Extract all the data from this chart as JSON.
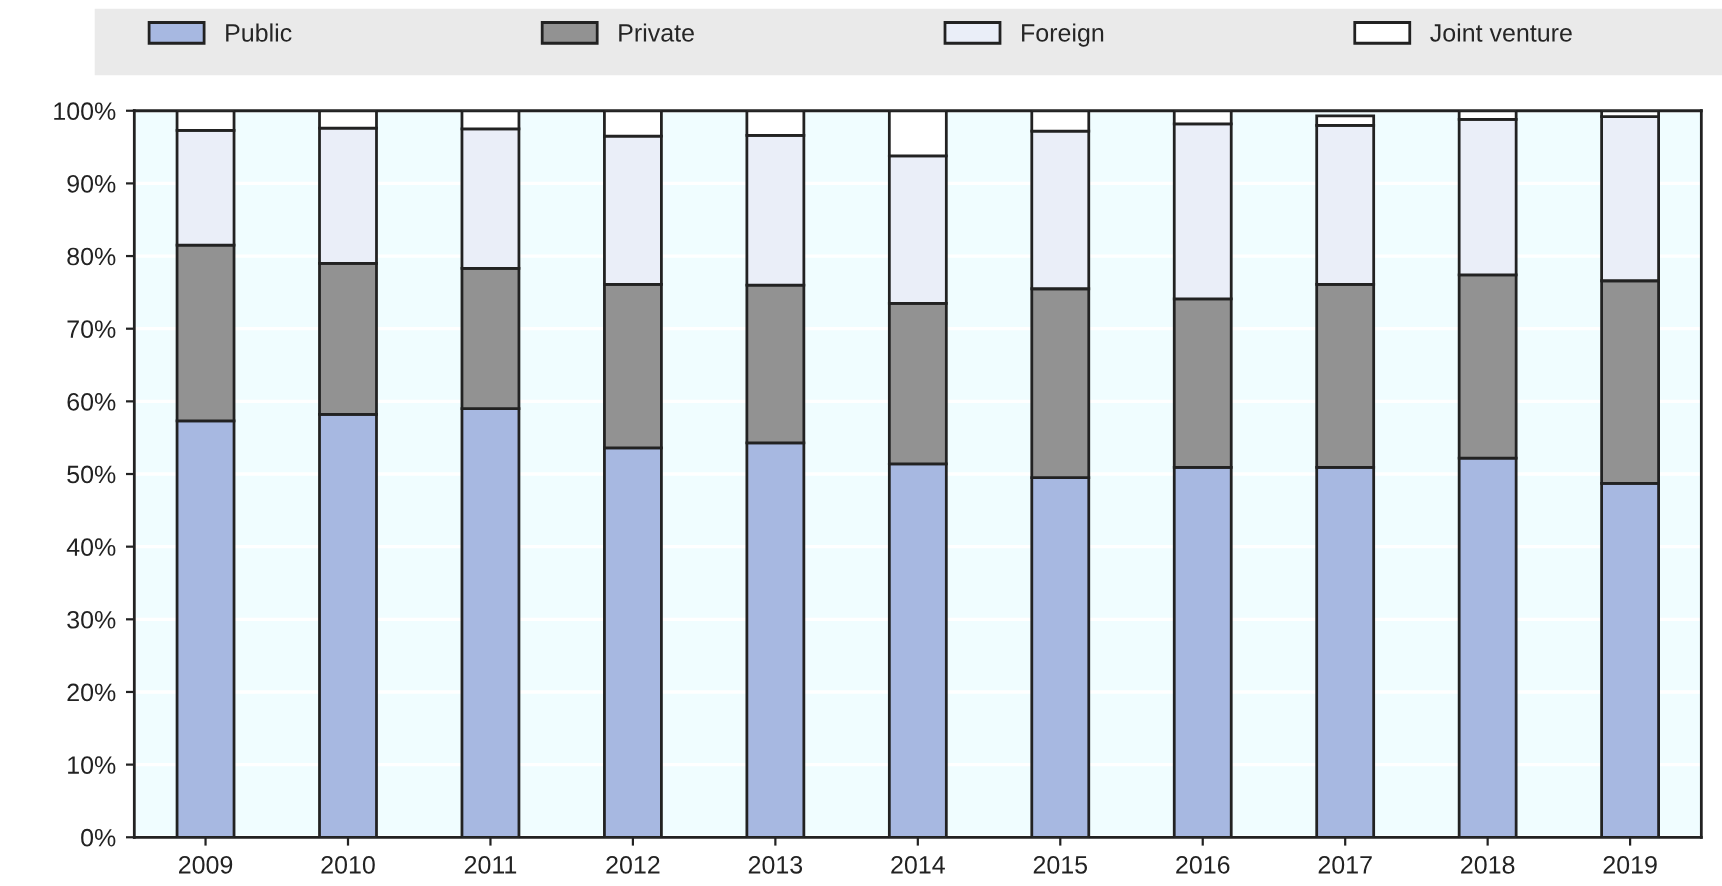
{
  "chart_data": {
    "type": "bar",
    "stacked": true,
    "categories": [
      "2009",
      "2010",
      "2011",
      "2012",
      "2013",
      "2014",
      "2015",
      "2016",
      "2017",
      "2018",
      "2019"
    ],
    "series": [
      {
        "name": "Public",
        "color": "#a7b8e1",
        "values": [
          57.3,
          58.2,
          59.0,
          53.6,
          54.3,
          51.4,
          49.5,
          50.9,
          50.9,
          52.2,
          48.7
        ]
      },
      {
        "name": "Private",
        "color": "#929292",
        "values": [
          24.2,
          20.8,
          19.3,
          22.5,
          21.7,
          22.1,
          26.0,
          23.2,
          25.2,
          25.2,
          27.9
        ]
      },
      {
        "name": "Foreign",
        "color": "#eaeef8",
        "values": [
          15.8,
          18.6,
          19.2,
          20.4,
          20.6,
          20.3,
          21.7,
          24.1,
          21.9,
          21.4,
          22.6
        ]
      },
      {
        "name": "Joint venture",
        "color": "#ffffff",
        "values": [
          2.7,
          2.4,
          2.5,
          3.5,
          3.4,
          6.2,
          2.8,
          1.8,
          1.3,
          1.2,
          0.8
        ]
      }
    ],
    "ylim": [
      0,
      100
    ],
    "yticks": [
      {
        "value": 0,
        "label": "0%"
      },
      {
        "value": 10,
        "label": "10%"
      },
      {
        "value": 20,
        "label": "20%"
      },
      {
        "value": 30,
        "label": "30%"
      },
      {
        "value": 40,
        "label": "40%"
      },
      {
        "value": 50,
        "label": "50%"
      },
      {
        "value": 60,
        "label": "60%"
      },
      {
        "value": 70,
        "label": "70%"
      },
      {
        "value": 80,
        "label": "80%"
      },
      {
        "value": 90,
        "label": "90%"
      },
      {
        "value": 100,
        "label": "100%"
      }
    ],
    "grid": "y",
    "legend": "top"
  }
}
